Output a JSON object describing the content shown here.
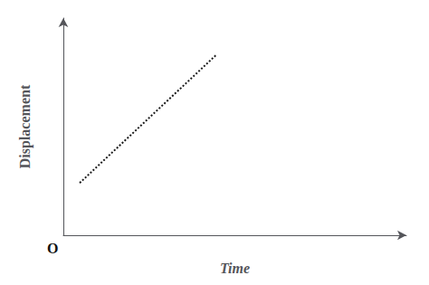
{
  "chart_data": {
    "type": "line",
    "xlabel": "Time",
    "ylabel": "Displacement",
    "annotation": "O",
    "x": [
      0.0,
      0.42
    ],
    "values": [
      0.18,
      0.82
    ],
    "color": "#1a1a1a",
    "line_style": "dotted",
    "xlim": [
      -0.05,
      1.0
    ],
    "ylim": [
      -0.08,
      1.0
    ],
    "tick_labels": false,
    "grid": false
  }
}
